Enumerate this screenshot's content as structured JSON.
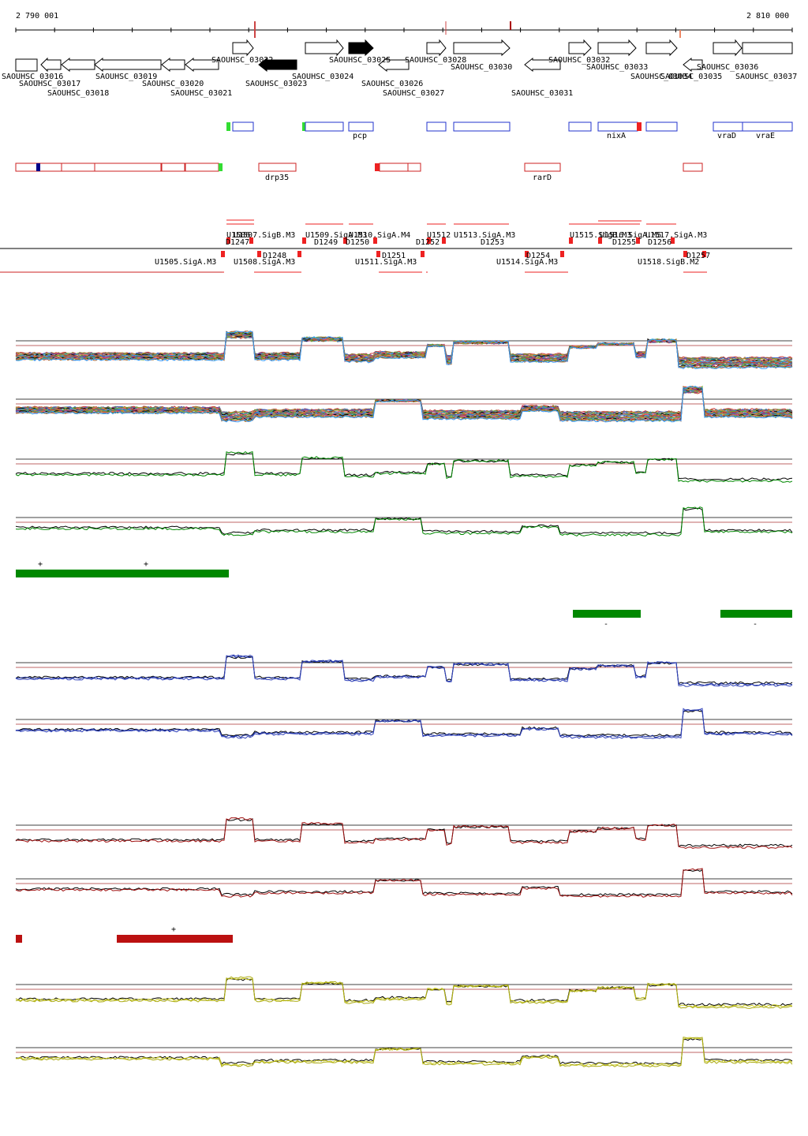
{
  "ruler": {
    "start_label": "2 790 001",
    "end_label": "2 810 000"
  },
  "genes": [
    {
      "label": "SAOUHSC_03016"
    },
    {
      "label": "SAOUHSC_03017"
    },
    {
      "label": "SAOUHSC_03018"
    },
    {
      "label": "SAOUHSC_03019"
    },
    {
      "label": "SAOUHSC_03020"
    },
    {
      "label": "SAOUHSC_03021"
    },
    {
      "label": "SAOUHSC_03022"
    },
    {
      "label": "SAOUHSC_03023"
    },
    {
      "label": "SAOUHSC_03024"
    },
    {
      "label": "SAOUHSC_03025"
    },
    {
      "label": "SAOUHSC_03026"
    },
    {
      "label": "SAOUHSC_03027"
    },
    {
      "label": "SAOUHSC_03028"
    },
    {
      "label": "SAOUHSC_03030"
    },
    {
      "label": "SAOUHSC_03031"
    },
    {
      "label": "SAOUHSC_03032"
    },
    {
      "label": "SAOUHSC_03033"
    },
    {
      "label": "SAOUHSC_03034"
    },
    {
      "label": "SAOUHSC_03035"
    },
    {
      "label": "SAOUHSC_03036"
    },
    {
      "label": "SAOUHSC_03037"
    }
  ],
  "gene_names": [
    {
      "label": "pcp"
    },
    {
      "label": "nixA"
    },
    {
      "label": "vraD"
    },
    {
      "label": "vraE"
    },
    {
      "label": "drp35"
    },
    {
      "label": "rarD"
    }
  ],
  "tu_labels": [
    {
      "label": "U1506"
    },
    {
      "label": "U1507.SigB.M3"
    },
    {
      "label": "U1509.SigA.M3"
    },
    {
      "label": "U1510.SigA.M4"
    },
    {
      "label": "U1512"
    },
    {
      "label": "U1513.SigA.M3"
    },
    {
      "label": "U1515.SigB.M3"
    },
    {
      "label": "U1516.SigA.M5"
    },
    {
      "label": "U1517.SigA.M3"
    },
    {
      "label": "D1247"
    },
    {
      "label": "D1249"
    },
    {
      "label": "D1250"
    },
    {
      "label": "D1252"
    },
    {
      "label": "D1253"
    },
    {
      "label": "D1255"
    },
    {
      "label": "D1256"
    },
    {
      "label": "U1505.SigA.M3"
    },
    {
      "label": "D1248"
    },
    {
      "label": "U1508.SigA.M3"
    },
    {
      "label": "D1251"
    },
    {
      "label": "U1511.SigA.M3"
    },
    {
      "label": "D1254"
    },
    {
      "label": "U1514.SigA.M3"
    },
    {
      "label": "D1257"
    },
    {
      "label": "U1518.SigB.M2"
    }
  ],
  "region_marks": [
    {
      "label": "+"
    },
    {
      "label": "+"
    },
    {
      "label": "-"
    },
    {
      "label": "-"
    },
    {
      "label": "+"
    }
  ],
  "colors": {
    "green": "#008800",
    "blue": "#1a2f9e",
    "red": "#a01010",
    "yellow": "#cccc22",
    "dark": "#000000",
    "box_blue": "#2233cc",
    "box_red": "#cc2222"
  }
}
